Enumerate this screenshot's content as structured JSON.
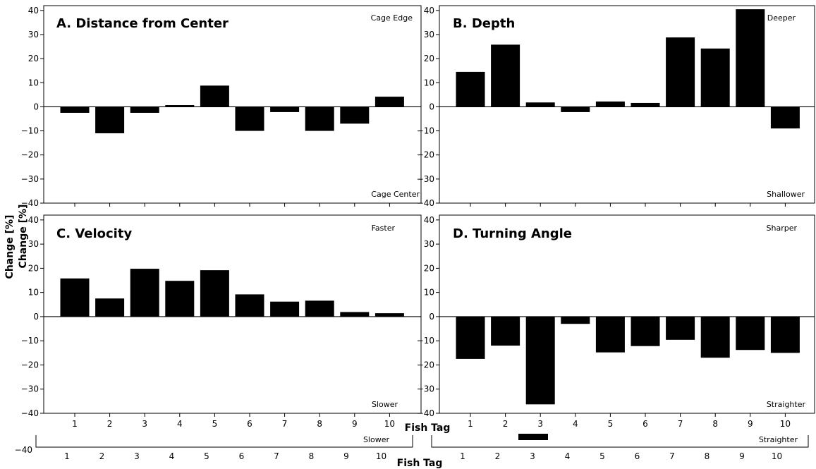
{
  "figure": {
    "ylabel": "Change [%]",
    "xlabel": "Fish Tag"
  },
  "chart_data": [
    {
      "type": "bar",
      "title": "A. Distance from Center",
      "top_annotation": "Cage Edge",
      "bottom_annotation": "Cage Center",
      "categories": [
        "1",
        "2",
        "3",
        "4",
        "5",
        "6",
        "7",
        "8",
        "9",
        "10"
      ],
      "values": [
        -2.5,
        -11,
        -2.5,
        0.7,
        8.8,
        -10,
        -2.2,
        -10,
        -7,
        4.2
      ],
      "xlabel": "",
      "ylabel": "",
      "ylim": [
        -40,
        42
      ],
      "yticks": [
        -40,
        -30,
        -20,
        -10,
        0,
        10,
        20,
        30,
        40
      ],
      "grid": false
    },
    {
      "type": "bar",
      "title": "B. Depth",
      "top_annotation": "Deeper",
      "bottom_annotation": "Shallower",
      "categories": [
        "1",
        "2",
        "3",
        "4",
        "5",
        "6",
        "7",
        "8",
        "9",
        "10"
      ],
      "values": [
        14.5,
        25.8,
        1.8,
        -2.2,
        2.2,
        1.6,
        28.8,
        24.2,
        40.5,
        -9
      ],
      "xlabel": "",
      "ylabel": "",
      "ylim": [
        -40,
        42
      ],
      "yticks": [
        -40,
        -30,
        -20,
        -10,
        0,
        10,
        20,
        30,
        40
      ],
      "grid": false
    },
    {
      "type": "bar",
      "title": "C. Velocity",
      "top_annotation": "Faster",
      "bottom_annotation": "Slower",
      "categories": [
        "1",
        "2",
        "3",
        "4",
        "5",
        "6",
        "7",
        "8",
        "9",
        "10"
      ],
      "values": [
        15.8,
        7.5,
        19.8,
        14.8,
        19.2,
        9.2,
        6.2,
        6.6,
        1.9,
        1.4
      ],
      "xlabel": "",
      "ylabel": "",
      "ylim": [
        -40,
        42
      ],
      "yticks": [
        -40,
        -30,
        -20,
        -10,
        0,
        10,
        20,
        30,
        40
      ],
      "grid": false
    },
    {
      "type": "bar",
      "title": "D. Turning Angle",
      "top_annotation": "Sharper",
      "bottom_annotation": "Straighter",
      "categories": [
        "1",
        "2",
        "3",
        "4",
        "5",
        "6",
        "7",
        "8",
        "9",
        "10"
      ],
      "values": [
        -17.5,
        -12,
        -36.3,
        -3,
        -14.8,
        -12.2,
        -9.6,
        -17,
        -13.8,
        -15
      ],
      "xlabel": "",
      "ylabel": "",
      "ylim": [
        -40,
        42
      ],
      "yticks": [
        -40,
        -30,
        -20,
        -10,
        0,
        10,
        20,
        30,
        40
      ],
      "grid": false
    }
  ],
  "ghost": {
    "ylabel": "Change [%]",
    "tick_label": "−40",
    "slower": "Slower",
    "straighter": "Straighter",
    "xlabel": "Fish Tag",
    "categories": [
      "1",
      "2",
      "3",
      "4",
      "5",
      "6",
      "7",
      "8",
      "9",
      "10"
    ]
  }
}
